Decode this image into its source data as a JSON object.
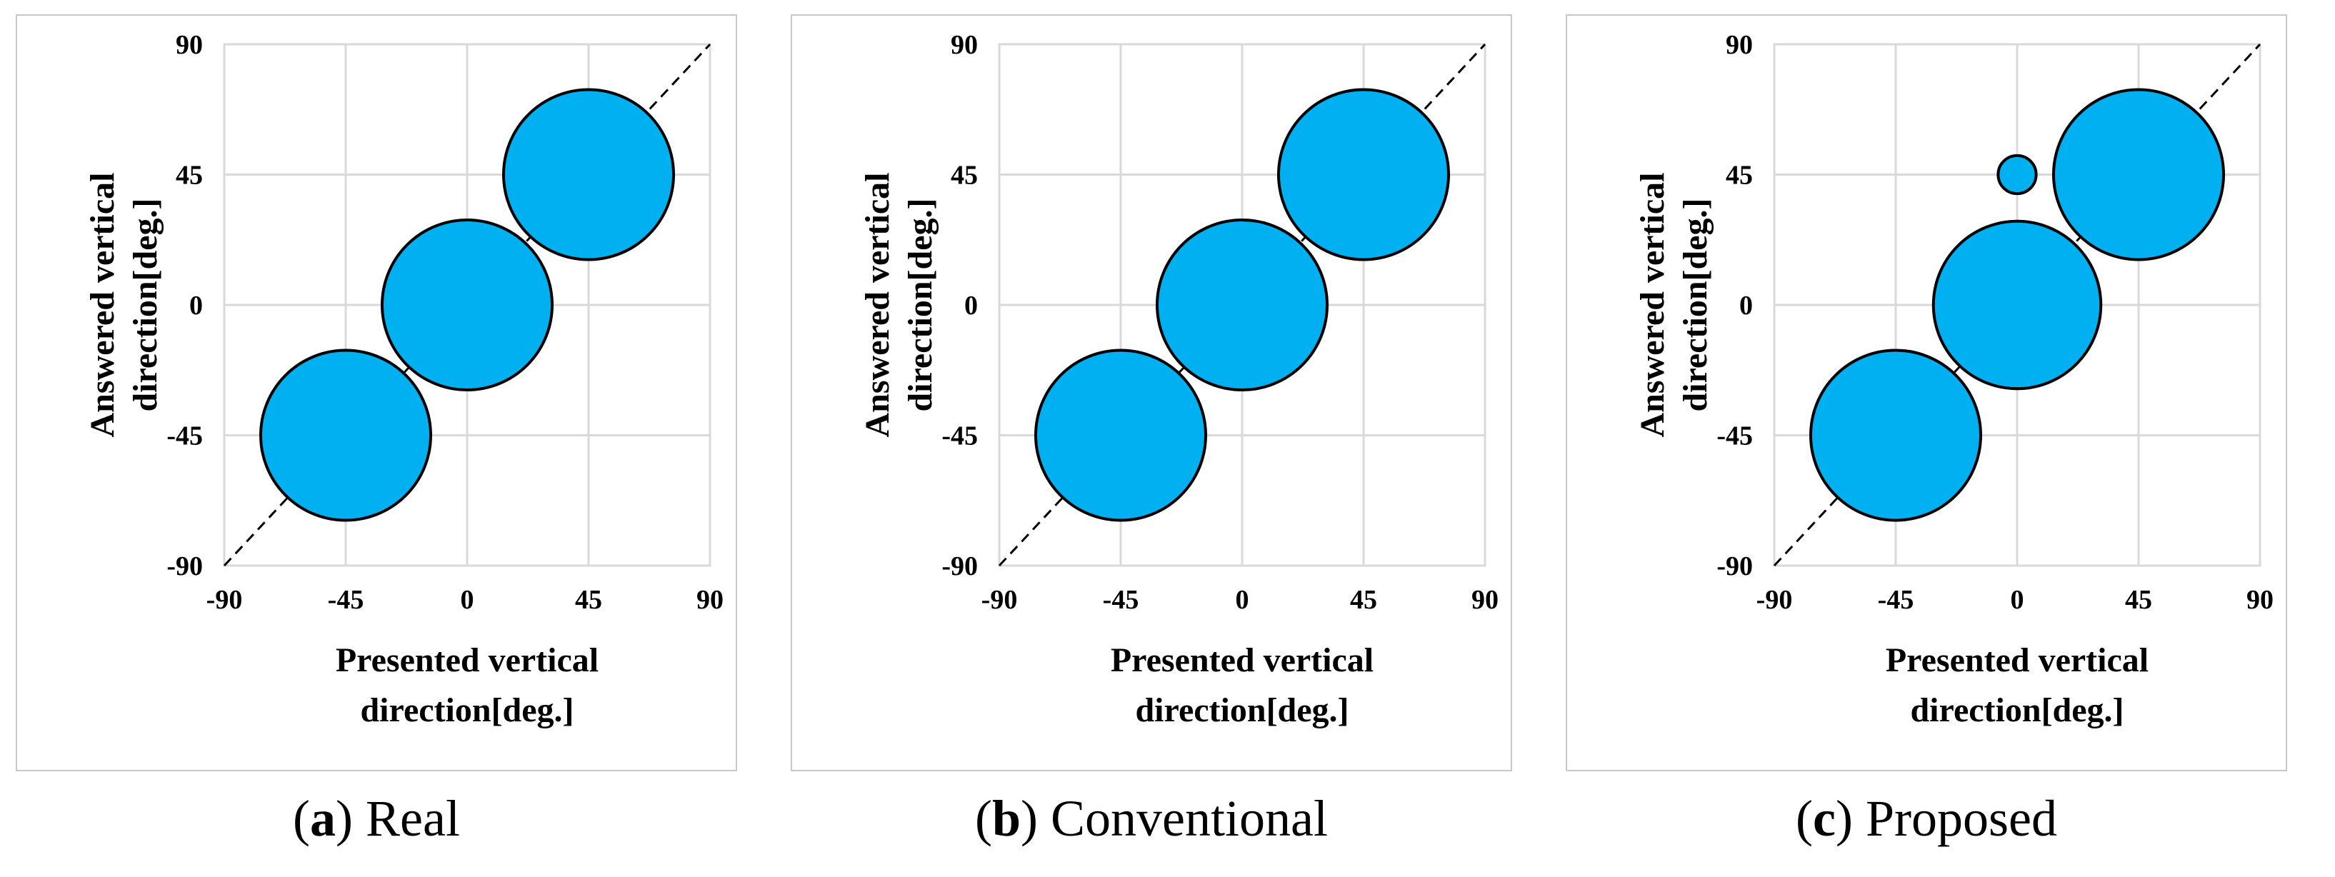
{
  "chart_data": [
    {
      "type": "scatter",
      "subtype": "bubble",
      "id": "a",
      "caption_letter": "a",
      "caption_text": "Real",
      "xlabel": [
        "Presented vertical",
        "direction[deg.]"
      ],
      "ylabel": [
        "Answered vertical",
        "direction[deg.]"
      ],
      "xlim": [
        -90,
        90
      ],
      "ylim": [
        -90,
        90
      ],
      "xticks": [
        "-90",
        "-45",
        "0",
        "45",
        "90"
      ],
      "yticks": [
        "-90",
        "-45",
        "0",
        "45",
        "90"
      ],
      "grid": true,
      "reference_line": "y = x (dashed)",
      "points": [
        {
          "x": -45,
          "y": -45,
          "size": 1.0
        },
        {
          "x": 0,
          "y": 0,
          "size": 1.0
        },
        {
          "x": 45,
          "y": 45,
          "size": 1.0
        }
      ]
    },
    {
      "type": "scatter",
      "subtype": "bubble",
      "id": "b",
      "caption_letter": "b",
      "caption_text": "Conventional",
      "xlabel": [
        "Presented vertical",
        "direction[deg.]"
      ],
      "ylabel": [
        "Answered vertical",
        "direction[deg.]"
      ],
      "xlim": [
        -90,
        90
      ],
      "ylim": [
        -90,
        90
      ],
      "xticks": [
        "-90",
        "-45",
        "0",
        "45",
        "90"
      ],
      "yticks": [
        "-90",
        "-45",
        "0",
        "45",
        "90"
      ],
      "grid": true,
      "reference_line": "y = x (dashed)",
      "points": [
        {
          "x": -45,
          "y": -45,
          "size": 1.0
        },
        {
          "x": 0,
          "y": 0,
          "size": 1.0
        },
        {
          "x": 45,
          "y": 45,
          "size": 1.0
        }
      ]
    },
    {
      "type": "scatter",
      "subtype": "bubble",
      "id": "c",
      "caption_letter": "c",
      "caption_text": "Proposed",
      "xlabel": [
        "Presented vertical",
        "direction[deg.]"
      ],
      "ylabel": [
        "Answered vertical",
        "direction[deg.]"
      ],
      "xlim": [
        -90,
        90
      ],
      "ylim": [
        -90,
        90
      ],
      "xticks": [
        "-90",
        "-45",
        "0",
        "45",
        "90"
      ],
      "yticks": [
        "-90",
        "-45",
        "0",
        "45",
        "90"
      ],
      "grid": true,
      "reference_line": "y = x (dashed)",
      "points": [
        {
          "x": -45,
          "y": -45,
          "size": 1.0
        },
        {
          "x": 0,
          "y": 0,
          "size": 0.97
        },
        {
          "x": 45,
          "y": 45,
          "size": 1.0
        },
        {
          "x": 0,
          "y": 45,
          "size": 0.05
        }
      ]
    }
  ],
  "colors": {
    "bubble_fill": "#00b0f0",
    "bubble_stroke": "#000000",
    "grid": "#d9d9d9",
    "reference_line": "#000000"
  }
}
